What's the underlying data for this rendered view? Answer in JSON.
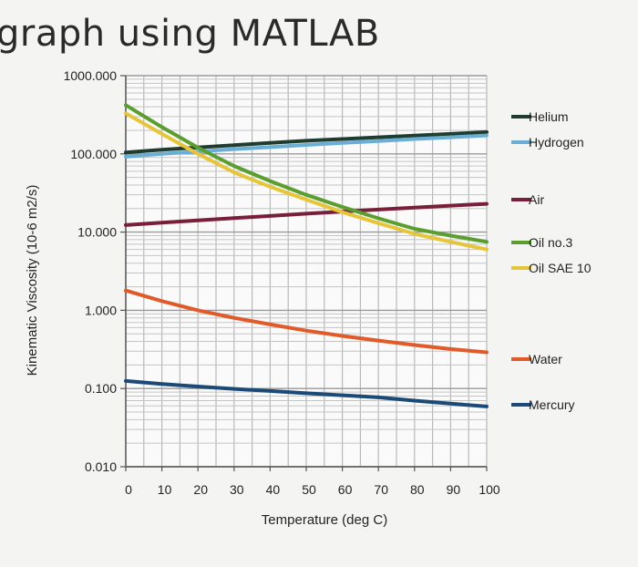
{
  "heading": "graph using MATLAB",
  "chart_data": {
    "type": "line",
    "title": "",
    "xlabel": "Temperature (deg C)",
    "ylabel": "Kinematic Viscosity (10-6 m2/s)",
    "x_scale": "linear",
    "y_scale": "log",
    "xlim": [
      0,
      100
    ],
    "ylim": [
      0.01,
      1000
    ],
    "x_ticks": [
      "0",
      "10",
      "20",
      "30",
      "40",
      "50",
      "60",
      "70",
      "80",
      "90",
      "100"
    ],
    "y_ticks": [
      "1000.000",
      "100.000",
      "10.000",
      "1.000",
      "0.100",
      "0.010"
    ],
    "grid": true,
    "legend_position": "right",
    "x": [
      0,
      10,
      20,
      30,
      40,
      50,
      60,
      70,
      80,
      90,
      100
    ],
    "series": [
      {
        "name": "Helium",
        "color": "#1f3d2e",
        "values": [
          104,
          113,
          121,
          129,
          138,
          147,
          155,
          163,
          171,
          180,
          190
        ]
      },
      {
        "name": "Hydrogen",
        "color": "#6aaed6",
        "values": [
          92,
          100,
          107,
          115,
          122,
          130,
          138,
          146,
          155,
          163,
          172
        ]
      },
      {
        "name": "Air",
        "color": "#7a1f3a",
        "values": [
          12.3,
          13.2,
          14.1,
          15.1,
          16.1,
          17.2,
          18.3,
          19.4,
          20.6,
          21.8,
          23.0
        ]
      },
      {
        "name": "Oil no.3",
        "color": "#5a9e2f",
        "values": [
          420,
          220,
          120,
          70,
          45,
          30,
          21,
          15,
          11,
          9,
          7.5
        ]
      },
      {
        "name": "Oil SAE 10",
        "color": "#e6c53a",
        "values": [
          330,
          180,
          100,
          58,
          38,
          26,
          18,
          13,
          9.5,
          7.5,
          6
        ]
      },
      {
        "name": "Water",
        "color": "#e15a2a",
        "values": [
          1.79,
          1.31,
          1.0,
          0.8,
          0.66,
          0.55,
          0.47,
          0.41,
          0.36,
          0.32,
          0.29
        ]
      },
      {
        "name": "Mercury",
        "color": "#1c4a78",
        "values": [
          0.125,
          0.114,
          0.106,
          0.099,
          0.093,
          0.087,
          0.082,
          0.077,
          0.07,
          0.064,
          0.059
        ]
      }
    ]
  }
}
